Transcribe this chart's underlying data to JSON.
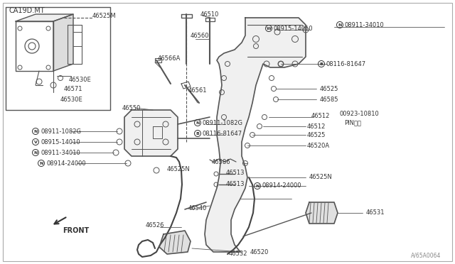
{
  "bg_color": "#ffffff",
  "line_color": "#555555",
  "text_color": "#333333",
  "fig_width": 6.4,
  "fig_height": 3.72,
  "watermark": "A/65A0064",
  "inset_label": "CA19D.MT",
  "front_arrow_text": "FRONT"
}
